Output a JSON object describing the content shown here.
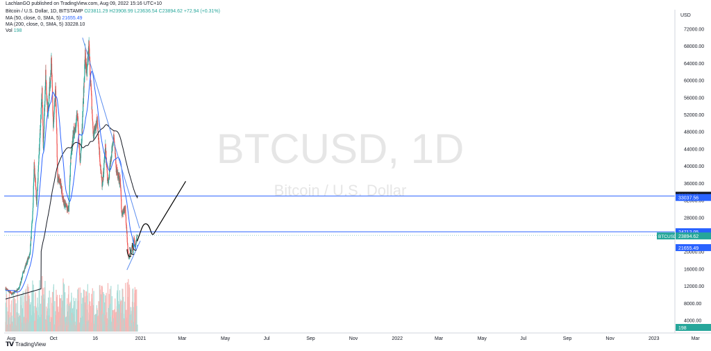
{
  "header": {
    "publisher_line": "LachlanGO published on TradingView.com, Aug 09, 2022 15:16 UTC+10",
    "symbol_line": "Bitcoin / U.S. Dollar, 1D, BITSTAMP",
    "ohlc": "O23811.29  H23908.99  L23636.54  C23894.62  +72.94 (+0.31%)",
    "ma50_label": "MA (50, close, 0, SMA, 5)",
    "ma50_value": "21655.49",
    "ma200_label": "MA (200, close, 0, SMA, 5)",
    "ma200_value": "33228.10",
    "vol_label": "Vol",
    "vol_value": "198"
  },
  "watermark": {
    "symbol": "BTCUSD, 1D",
    "name": "Bitcoin / U.S. Dollar"
  },
  "footer": {
    "brand": "TradingView"
  },
  "colors": {
    "up": "#26a69a",
    "down": "#ef5350",
    "ma50": "#2962ff",
    "ma200": "#131722",
    "hline": "#2962ff",
    "trend": "#5b8def",
    "drawing": "#000000",
    "volume_up": "#a8dcd7",
    "volume_down": "#f7b6b4"
  },
  "chart_data": {
    "type": "candlestick",
    "price_axis_label": "USD",
    "y_ticks": [
      "72000.00",
      "68000.00",
      "64000.00",
      "60000.00",
      "56000.00",
      "52000.00",
      "48000.00",
      "44000.00",
      "40000.00",
      "36000.00",
      "32000.00",
      "28000.00",
      "24000.00",
      "20000.00",
      "16000.00",
      "12000.00",
      "8000.00",
      "4000.00"
    ],
    "x_ticks": [
      "Aug",
      "Oct",
      "16",
      "2021",
      "Mar",
      "May",
      "Jul",
      "Sep",
      "Nov",
      "2022",
      "Mar",
      "May",
      "Jul",
      "Sep",
      "Nov",
      "2023",
      "Mar"
    ],
    "price_labels": [
      {
        "text": "33228.10",
        "style": "dark"
      },
      {
        "text": "33037.56",
        "style": "blue"
      },
      {
        "text": "24712.05",
        "style": "blue"
      },
      {
        "text": "BTCUSD",
        "style": "teal"
      },
      {
        "text": "23894.62",
        "style": "teal"
      },
      {
        "text": "21655.49",
        "style": "blue"
      },
      {
        "text": "198",
        "style": "teal"
      }
    ],
    "horizontal_lines": [
      33037.56,
      24712.05
    ],
    "last_price": 23894.62,
    "price_anchors": [
      [
        "2020-08-01",
        11500
      ],
      [
        "2020-09-05",
        10200
      ],
      [
        "2020-10-15",
        11400
      ],
      [
        "2020-11-10",
        15500
      ],
      [
        "2020-12-15",
        19500
      ],
      [
        "2020-12-31",
        29000
      ],
      [
        "2021-01-08",
        40500
      ],
      [
        "2021-01-22",
        31000
      ],
      [
        "2021-02-08",
        46500
      ],
      [
        "2021-02-21",
        57000
      ],
      [
        "2021-02-28",
        45000
      ],
      [
        "2021-03-13",
        61000
      ],
      [
        "2021-03-25",
        52000
      ],
      [
        "2021-04-14",
        64500
      ],
      [
        "2021-04-25",
        49000
      ],
      [
        "2021-05-08",
        58000
      ],
      [
        "2021-05-19",
        37000
      ],
      [
        "2021-06-01",
        36500
      ],
      [
        "2021-06-22",
        31500
      ],
      [
        "2021-07-20",
        29800
      ],
      [
        "2021-07-31",
        41500
      ],
      [
        "2021-08-14",
        47000
      ],
      [
        "2021-09-06",
        52000
      ],
      [
        "2021-09-21",
        41000
      ],
      [
        "2021-10-01",
        47000
      ],
      [
        "2021-10-20",
        66000
      ],
      [
        "2021-10-29",
        61000
      ],
      [
        "2021-11-10",
        68000
      ],
      [
        "2021-11-26",
        54000
      ],
      [
        "2021-12-04",
        47000
      ],
      [
        "2021-12-27",
        51000
      ],
      [
        "2022-01-10",
        41500
      ],
      [
        "2022-01-24",
        35000
      ],
      [
        "2022-02-10",
        44500
      ],
      [
        "2022-02-24",
        35500
      ],
      [
        "2022-03-28",
        47500
      ],
      [
        "2022-04-11",
        39500
      ],
      [
        "2022-05-05",
        36000
      ],
      [
        "2022-05-12",
        28800
      ],
      [
        "2022-06-01",
        30000
      ],
      [
        "2022-06-13",
        22000
      ],
      [
        "2022-06-18",
        19000
      ],
      [
        "2022-07-01",
        19200
      ],
      [
        "2022-07-08",
        22000
      ],
      [
        "2022-07-13",
        19500
      ],
      [
        "2022-07-20",
        23500
      ],
      [
        "2022-07-26",
        21000
      ],
      [
        "2022-08-08",
        23894
      ]
    ]
  }
}
